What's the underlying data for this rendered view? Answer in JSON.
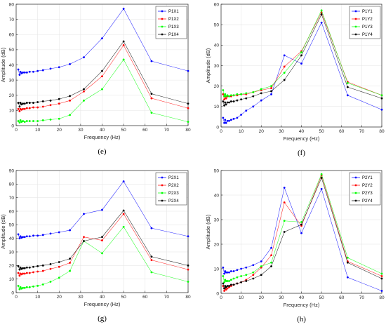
{
  "chart_data": [
    {
      "type": "line",
      "panel": "(e)",
      "xlabel": "Frequency (Hz)",
      "ylabel": "Amplitude (dB)",
      "xlim": [
        0,
        80
      ],
      "ylim": [
        0,
        80
      ],
      "xticks": [
        0,
        10,
        20,
        30,
        40,
        50,
        60,
        70,
        80
      ],
      "yticks": [
        0,
        10,
        20,
        30,
        40,
        50,
        60,
        70,
        80
      ],
      "grid": true,
      "legend": "top-right",
      "x": [
        1,
        1.6,
        2,
        2.5,
        3.15,
        4,
        5,
        6.3,
        8,
        10,
        12.5,
        16,
        20,
        25,
        31.5,
        40,
        50,
        63,
        80
      ],
      "series": [
        {
          "name": "P1X1",
          "color": "#0000ff",
          "values": [
            37,
            33.5,
            35.5,
            34.5,
            35,
            35,
            35,
            35.5,
            35.5,
            36,
            36.5,
            37.5,
            38.5,
            40.5,
            45,
            57.5,
            77,
            42.5,
            36
          ]
        },
        {
          "name": "P1X2",
          "color": "#ff0000",
          "values": [
            11,
            9.5,
            11,
            10.5,
            11,
            11,
            11.5,
            11.5,
            12,
            12,
            12.5,
            13.5,
            14.5,
            16.5,
            22.5,
            32.5,
            53,
            18,
            11.5
          ]
        },
        {
          "name": "P1X3",
          "color": "#00ff00",
          "values": [
            3,
            2,
            3.5,
            2.5,
            3,
            2.5,
            3,
            3,
            3,
            3,
            3.5,
            4,
            4.5,
            7,
            16.5,
            24,
            43.5,
            8.5,
            2.5
          ]
        },
        {
          "name": "P1X4",
          "color": "#000000",
          "values": [
            15,
            12.5,
            15,
            14,
            14.5,
            14.5,
            15,
            15,
            15,
            15.5,
            16,
            16.5,
            17.5,
            19.5,
            24,
            36,
            55.5,
            21,
            14.5
          ]
        }
      ]
    },
    {
      "type": "line",
      "panel": "(f)",
      "xlabel": "Frequency (Hz)",
      "ylabel": "Amplitude (dB)",
      "xlim": [
        0,
        80
      ],
      "ylim": [
        0,
        60
      ],
      "xticks": [
        0,
        10,
        20,
        30,
        40,
        50,
        60,
        70,
        80
      ],
      "yticks": [
        0,
        10,
        20,
        30,
        40,
        50,
        60
      ],
      "grid": true,
      "legend": "top-right",
      "x": [
        1,
        1.6,
        2,
        2.5,
        3.15,
        4,
        5,
        6.3,
        8,
        10,
        12.5,
        16,
        20,
        25,
        31.5,
        40,
        50,
        63,
        80
      ],
      "series": [
        {
          "name": "P1Y1",
          "color": "#0000ff",
          "values": [
            4.5,
            2,
            3.5,
            2,
            3,
            3,
            3.5,
            4,
            4.5,
            6,
            8,
            10,
            13,
            16,
            35,
            31,
            51,
            15.5,
            8.5
          ]
        },
        {
          "name": "P1Y2",
          "color": "#ff0000",
          "values": [
            16,
            13.5,
            15,
            14,
            15,
            15,
            15,
            15.5,
            15.5,
            16,
            16,
            17,
            18,
            19,
            29.5,
            37,
            56,
            22,
            15.5
          ]
        },
        {
          "name": "P1Y3",
          "color": "#00ff00",
          "values": [
            18,
            15,
            16,
            15,
            15.5,
            15,
            15.5,
            15.5,
            16,
            16,
            16.5,
            17,
            18.5,
            20,
            26.5,
            36.5,
            57,
            21.5,
            15.5
          ]
        },
        {
          "name": "P1Y4",
          "color": "#000000",
          "values": [
            12.5,
            10.5,
            12,
            11,
            12,
            12,
            12.5,
            12.5,
            13,
            13.5,
            14,
            15,
            16.5,
            17.5,
            23,
            35,
            55,
            19.5,
            14
          ]
        }
      ]
    },
    {
      "type": "line",
      "panel": "(g)",
      "xlabel": "Frequency (Hz)",
      "ylabel": "Amplitude (dB)",
      "xlim": [
        0,
        80
      ],
      "ylim": [
        0,
        90
      ],
      "xticks": [
        0,
        10,
        20,
        30,
        40,
        50,
        60,
        70,
        80
      ],
      "yticks": [
        0,
        10,
        20,
        30,
        40,
        50,
        60,
        70,
        80,
        90
      ],
      "grid": true,
      "legend": "top-right",
      "x": [
        1,
        1.6,
        2,
        2.5,
        3.15,
        4,
        5,
        6.3,
        8,
        10,
        12.5,
        16,
        20,
        25,
        31.5,
        40,
        50,
        63,
        80
      ],
      "series": [
        {
          "name": "P2X1",
          "color": "#0000ff",
          "values": [
            43,
            40,
            41.5,
            40.5,
            41,
            41,
            41.5,
            41.5,
            42,
            42,
            42.5,
            43.5,
            44.5,
            46,
            58,
            61,
            82,
            47.5,
            41.5
          ]
        },
        {
          "name": "P2X2",
          "color": "#ff0000",
          "values": [
            14.5,
            12.5,
            14,
            13.5,
            14,
            14,
            14.5,
            14.5,
            15,
            15.5,
            16,
            17.5,
            19,
            22,
            41,
            38.5,
            58,
            24,
            17
          ]
        },
        {
          "name": "P2X3",
          "color": "#00ff00",
          "values": [
            5,
            2.5,
            4,
            3,
            3.5,
            3.5,
            4,
            4,
            4.5,
            5,
            6,
            8,
            11,
            16,
            38,
            29,
            48.5,
            15,
            8
          ]
        },
        {
          "name": "P2X4",
          "color": "#000000",
          "values": [
            19.5,
            17,
            18.5,
            17.5,
            18,
            18,
            18.5,
            18.5,
            19,
            19.5,
            20,
            21,
            22.5,
            25,
            38,
            41,
            60.5,
            26.5,
            20
          ]
        }
      ]
    },
    {
      "type": "line",
      "panel": "(h)",
      "xlabel": "Frequency (Hz)",
      "ylabel": "Amplitude (dB)",
      "xlim": [
        0,
        80
      ],
      "ylim": [
        0,
        50
      ],
      "xticks": [
        0,
        10,
        20,
        30,
        40,
        50,
        60,
        70,
        80
      ],
      "yticks": [
        0,
        10,
        20,
        30,
        40,
        50
      ],
      "grid": true,
      "legend": "top-right",
      "x": [
        1,
        1.6,
        2,
        2.5,
        3.15,
        4,
        5,
        6.3,
        8,
        10,
        12.5,
        16,
        20,
        25,
        31.5,
        40,
        50,
        63,
        80
      ],
      "series": [
        {
          "name": "P2Y1",
          "color": "#0000ff",
          "values": [
            10.5,
            8,
            9,
            8.5,
            8.5,
            8.5,
            9,
            9,
            9.5,
            10,
            10.5,
            11.5,
            13,
            18.5,
            43,
            24.5,
            42.5,
            6.5,
            1
          ]
        },
        {
          "name": "P2Y2",
          "color": "#ff0000",
          "values": [
            3,
            1,
            2,
            1.5,
            2,
            2.5,
            3,
            3.5,
            4,
            4.5,
            5.5,
            7.5,
            10.5,
            15.5,
            37,
            27.5,
            48,
            13,
            7
          ]
        },
        {
          "name": "P2Y3",
          "color": "#00ff00",
          "values": [
            7,
            4.5,
            5.5,
            5,
            5,
            5,
            5.5,
            6,
            6.5,
            7,
            7.5,
            8.5,
            11,
            12.5,
            29.5,
            29,
            48.5,
            14.5,
            8
          ]
        },
        {
          "name": "P2Y4",
          "color": "#000000",
          "values": [
            4,
            2,
            3,
            2.5,
            3,
            3,
            3.5,
            3.5,
            4,
            4.5,
            5,
            6,
            7.5,
            11,
            25,
            28,
            47,
            12.5,
            6
          ]
        }
      ]
    }
  ]
}
